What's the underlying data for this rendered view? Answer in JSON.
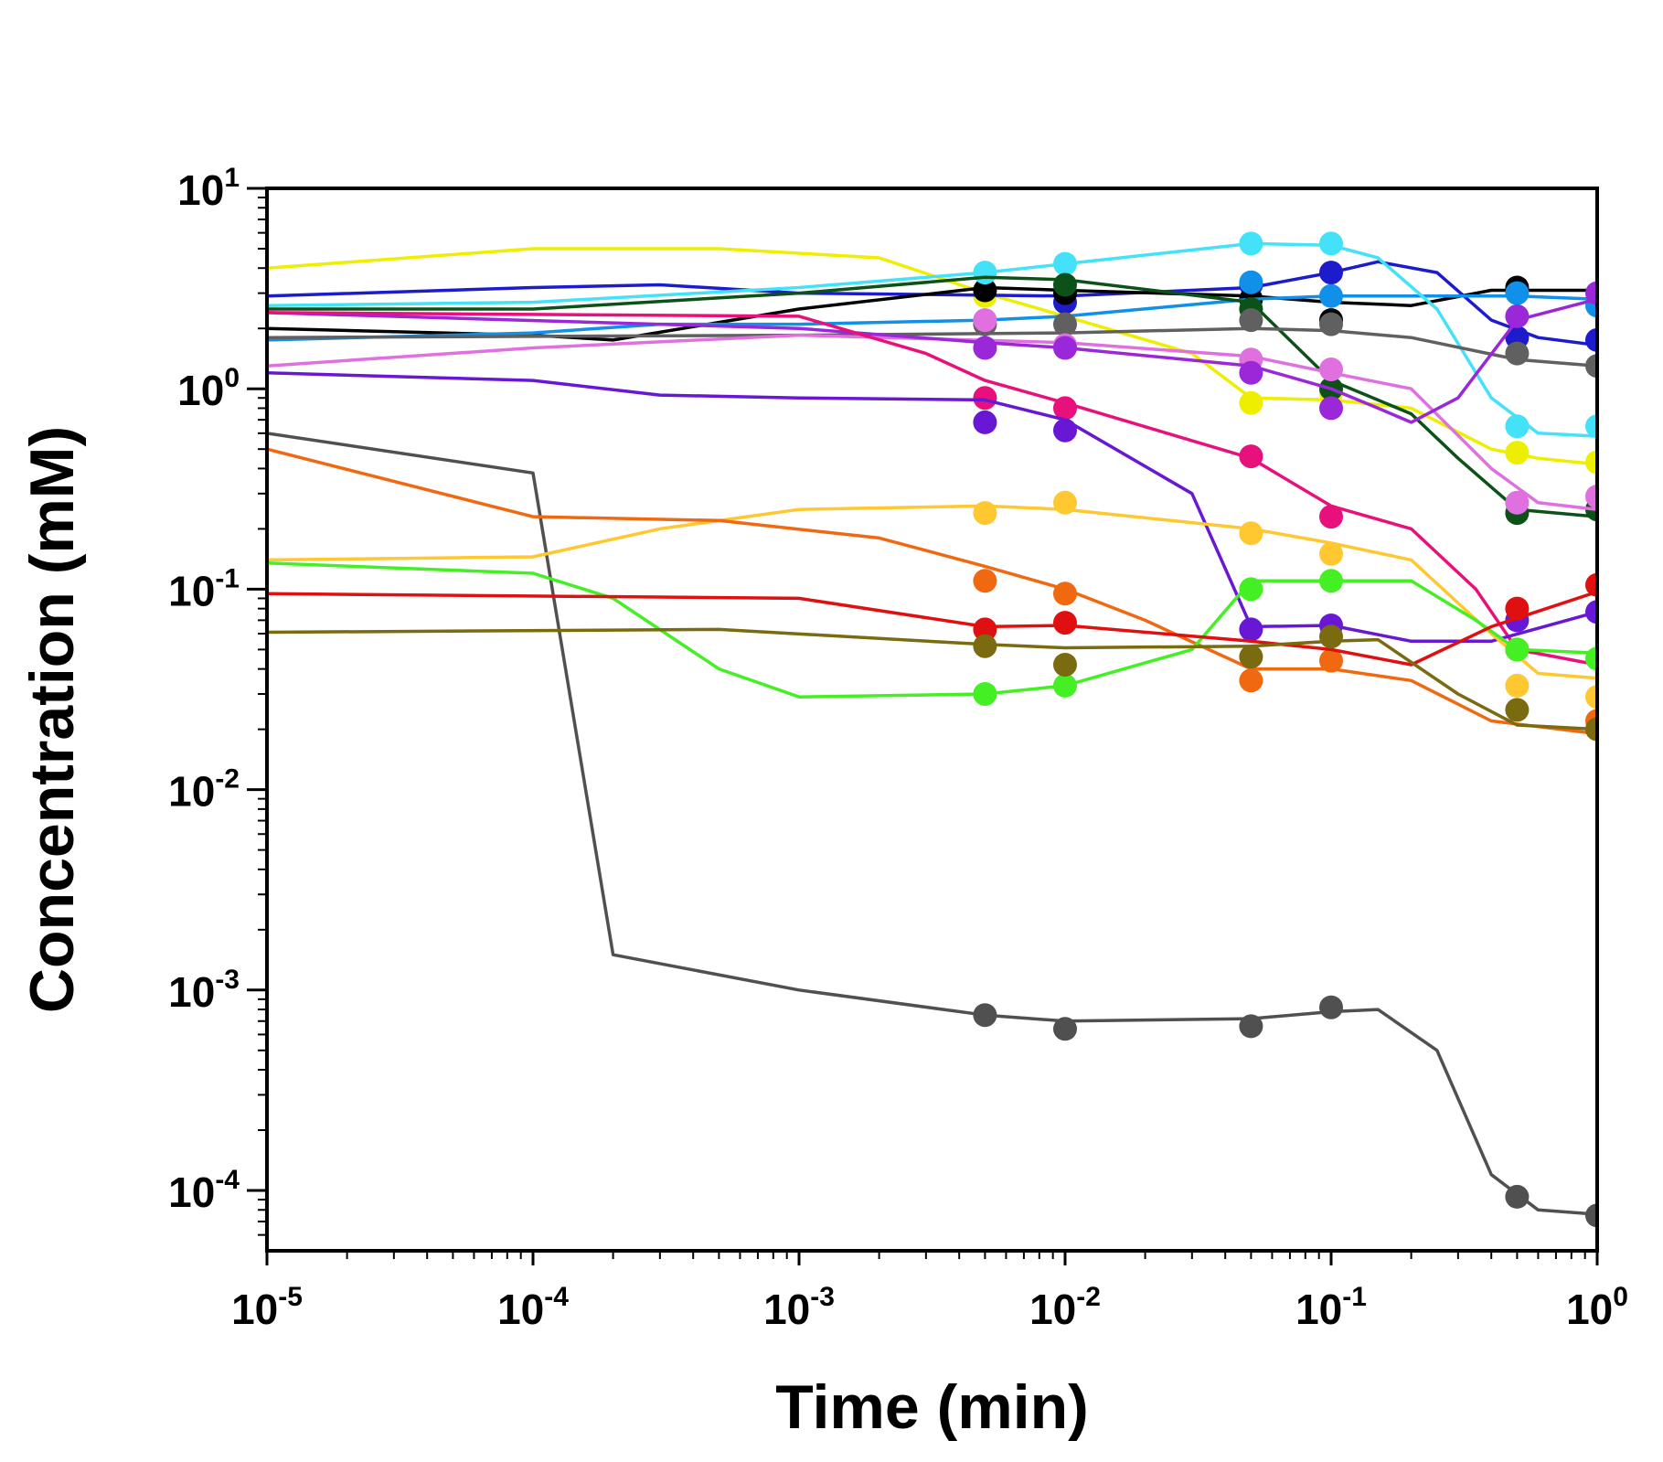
{
  "chart_data": {
    "type": "scatter",
    "title": "",
    "xlabel": "Time (min)",
    "ylabel": "Concentration (mM)",
    "xscale": "log",
    "yscale": "log",
    "xlim": [
      1e-05,
      1
    ],
    "ylim": [
      5e-05,
      10
    ],
    "grid": false,
    "legend": "none",
    "x_ticks": [
      {
        "base": "10",
        "exp": "-5",
        "value": 1e-05
      },
      {
        "base": "10",
        "exp": "-4",
        "value": 0.0001
      },
      {
        "base": "10",
        "exp": "-3",
        "value": 0.001
      },
      {
        "base": "10",
        "exp": "-2",
        "value": 0.01
      },
      {
        "base": "10",
        "exp": "-1",
        "value": 0.1
      },
      {
        "base": "10",
        "exp": "0",
        "value": 1
      }
    ],
    "y_ticks": [
      {
        "base": "10",
        "exp": "1",
        "value": 10
      },
      {
        "base": "10",
        "exp": "0",
        "value": 1
      },
      {
        "base": "10",
        "exp": "-1",
        "value": 0.1
      },
      {
        "base": "10",
        "exp": "-2",
        "value": 0.01
      },
      {
        "base": "10",
        "exp": "-3",
        "value": 0.001
      },
      {
        "base": "10",
        "exp": "-4",
        "value": 0.0001
      }
    ],
    "series": [
      {
        "color": "#505050",
        "line": [
          [
            1e-05,
            0.6
          ],
          [
            0.0001,
            0.38
          ],
          [
            0.0002,
            0.0015
          ],
          [
            0.001,
            0.001
          ],
          [
            0.005,
            0.00075
          ],
          [
            0.01,
            0.0007
          ],
          [
            0.05,
            0.00072
          ],
          [
            0.1,
            0.00078
          ],
          [
            0.15,
            0.0008
          ],
          [
            0.25,
            0.0005
          ],
          [
            0.4,
            0.00012
          ],
          [
            0.6,
            8e-05
          ],
          [
            1,
            7.6e-05
          ]
        ],
        "points": [
          [
            0.005,
            0.00075
          ],
          [
            0.01,
            0.00064
          ],
          [
            0.05,
            0.00066
          ],
          [
            0.1,
            0.00082
          ],
          [
            0.5,
            9.3e-05
          ],
          [
            1,
            7.5e-05
          ]
        ]
      },
      {
        "color": "#eeee00",
        "line": [
          [
            1e-05,
            4.0
          ],
          [
            0.0001,
            5.0
          ],
          [
            0.0005,
            5.0
          ],
          [
            0.002,
            4.5
          ],
          [
            0.005,
            3.0
          ],
          [
            0.01,
            2.3
          ],
          [
            0.03,
            1.5
          ],
          [
            0.05,
            0.9
          ],
          [
            0.1,
            0.88
          ],
          [
            0.2,
            0.8
          ],
          [
            0.4,
            0.5
          ],
          [
            0.6,
            0.45
          ],
          [
            1,
            0.42
          ]
        ],
        "points": [
          [
            0.005,
            2.9
          ],
          [
            0.05,
            0.85
          ],
          [
            0.1,
            0.95
          ],
          [
            0.5,
            0.48
          ],
          [
            1,
            0.43
          ]
        ]
      },
      {
        "color": "#1c1ccc",
        "line": [
          [
            1e-05,
            2.9
          ],
          [
            0.0001,
            3.2
          ],
          [
            0.0003,
            3.3
          ],
          [
            0.001,
            3.0
          ],
          [
            0.01,
            2.9
          ],
          [
            0.05,
            3.2
          ],
          [
            0.1,
            3.8
          ],
          [
            0.15,
            4.3
          ],
          [
            0.25,
            3.8
          ],
          [
            0.4,
            2.2
          ],
          [
            0.6,
            1.8
          ],
          [
            1,
            1.65
          ]
        ],
        "points": [
          [
            0.01,
            2.7
          ],
          [
            0.05,
            3.3
          ],
          [
            0.1,
            3.8
          ],
          [
            0.5,
            1.8
          ],
          [
            1,
            1.75
          ]
        ]
      },
      {
        "color": "#000000",
        "line": [
          [
            1e-05,
            2.0
          ],
          [
            0.0001,
            1.85
          ],
          [
            0.0002,
            1.75
          ],
          [
            0.001,
            2.5
          ],
          [
            0.005,
            3.2
          ],
          [
            0.01,
            3.1
          ],
          [
            0.05,
            2.9
          ],
          [
            0.1,
            2.7
          ],
          [
            0.2,
            2.6
          ],
          [
            0.4,
            3.1
          ],
          [
            1,
            3.1
          ]
        ],
        "points": [
          [
            0.005,
            3.1
          ],
          [
            0.01,
            3.0
          ],
          [
            0.05,
            2.8
          ],
          [
            0.1,
            2.2
          ],
          [
            0.5,
            3.2
          ]
        ]
      },
      {
        "color": "#1090e8",
        "line": [
          [
            1e-05,
            1.75
          ],
          [
            0.0001,
            1.9
          ],
          [
            0.0003,
            2.1
          ],
          [
            0.001,
            2.1
          ],
          [
            0.005,
            2.2
          ],
          [
            0.01,
            2.3
          ],
          [
            0.05,
            2.8
          ],
          [
            0.1,
            2.9
          ],
          [
            0.5,
            2.9
          ],
          [
            1,
            2.8
          ]
        ],
        "points": [
          [
            0.05,
            3.4
          ],
          [
            0.1,
            2.9
          ],
          [
            0.5,
            3.0
          ],
          [
            1,
            2.6
          ]
        ]
      },
      {
        "color": "#44e2f8",
        "line": [
          [
            1e-05,
            2.6
          ],
          [
            0.0001,
            2.7
          ],
          [
            0.001,
            3.2
          ],
          [
            0.005,
            3.8
          ],
          [
            0.01,
            4.2
          ],
          [
            0.05,
            5.3
          ],
          [
            0.1,
            5.2
          ],
          [
            0.15,
            4.5
          ],
          [
            0.25,
            2.5
          ],
          [
            0.4,
            0.9
          ],
          [
            0.6,
            0.6
          ],
          [
            1,
            0.58
          ]
        ],
        "points": [
          [
            0.005,
            3.8
          ],
          [
            0.01,
            4.2
          ],
          [
            0.05,
            5.3
          ],
          [
            0.1,
            5.3
          ],
          [
            0.5,
            0.65
          ],
          [
            1,
            0.65
          ]
        ]
      },
      {
        "color": "#0c5218",
        "line": [
          [
            1e-05,
            2.5
          ],
          [
            0.0001,
            2.5
          ],
          [
            0.001,
            3.0
          ],
          [
            0.005,
            3.6
          ],
          [
            0.01,
            3.5
          ],
          [
            0.05,
            2.7
          ],
          [
            0.1,
            1.1
          ],
          [
            0.2,
            0.75
          ],
          [
            0.3,
            0.45
          ],
          [
            0.5,
            0.25
          ],
          [
            1,
            0.23
          ]
        ],
        "points": [
          [
            0.01,
            3.3
          ],
          [
            0.05,
            2.5
          ],
          [
            0.1,
            1.0
          ],
          [
            0.5,
            0.24
          ],
          [
            1,
            0.25
          ]
        ]
      },
      {
        "color": "#606060",
        "line": [
          [
            1e-05,
            1.8
          ],
          [
            0.001,
            1.85
          ],
          [
            0.01,
            1.9
          ],
          [
            0.05,
            2.0
          ],
          [
            0.1,
            1.95
          ],
          [
            0.2,
            1.8
          ],
          [
            0.5,
            1.4
          ],
          [
            1,
            1.3
          ]
        ],
        "points": [
          [
            0.005,
            2.1
          ],
          [
            0.01,
            2.1
          ],
          [
            0.05,
            2.2
          ],
          [
            0.1,
            2.1
          ],
          [
            0.5,
            1.5
          ],
          [
            1,
            1.3
          ]
        ]
      },
      {
        "color": "#e070e0",
        "line": [
          [
            1e-05,
            1.3
          ],
          [
            0.0001,
            1.6
          ],
          [
            0.001,
            1.85
          ],
          [
            0.01,
            1.7
          ],
          [
            0.05,
            1.45
          ],
          [
            0.1,
            1.2
          ],
          [
            0.2,
            1.0
          ],
          [
            0.4,
            0.4
          ],
          [
            0.6,
            0.27
          ],
          [
            1,
            0.25
          ]
        ],
        "points": [
          [
            0.005,
            2.2
          ],
          [
            0.01,
            1.65
          ],
          [
            0.05,
            1.4
          ],
          [
            0.1,
            1.25
          ],
          [
            0.5,
            0.27
          ],
          [
            1,
            0.29
          ]
        ]
      },
      {
        "color": "#9a28d8",
        "line": [
          [
            1e-05,
            2.4
          ],
          [
            0.001,
            2.0
          ],
          [
            0.005,
            1.7
          ],
          [
            0.01,
            1.6
          ],
          [
            0.05,
            1.3
          ],
          [
            0.1,
            1.0
          ],
          [
            0.15,
            0.8
          ],
          [
            0.2,
            0.68
          ],
          [
            0.3,
            0.9
          ],
          [
            0.5,
            2.2
          ],
          [
            1,
            2.8
          ]
        ],
        "points": [
          [
            0.005,
            1.6
          ],
          [
            0.01,
            1.6
          ],
          [
            0.05,
            1.2
          ],
          [
            0.1,
            0.8
          ],
          [
            0.5,
            2.3
          ],
          [
            1,
            3.0
          ]
        ]
      },
      {
        "color": "#e8107a",
        "line": [
          [
            1e-05,
            2.4
          ],
          [
            0.001,
            2.3
          ],
          [
            0.003,
            1.5
          ],
          [
            0.005,
            1.1
          ],
          [
            0.01,
            0.85
          ],
          [
            0.05,
            0.45
          ],
          [
            0.1,
            0.26
          ],
          [
            0.2,
            0.2
          ],
          [
            0.35,
            0.1
          ],
          [
            0.5,
            0.05
          ],
          [
            1,
            0.042
          ]
        ],
        "points": [
          [
            0.005,
            0.9
          ],
          [
            0.01,
            0.8
          ],
          [
            0.05,
            0.46
          ],
          [
            0.1,
            0.23
          ],
          [
            0.5,
            0.05
          ]
        ]
      },
      {
        "color": "#6818d4",
        "line": [
          [
            1e-05,
            1.2
          ],
          [
            0.0001,
            1.1
          ],
          [
            0.0003,
            0.93
          ],
          [
            0.001,
            0.9
          ],
          [
            0.005,
            0.88
          ],
          [
            0.01,
            0.7
          ],
          [
            0.03,
            0.3
          ],
          [
            0.05,
            0.065
          ],
          [
            0.1,
            0.066
          ],
          [
            0.2,
            0.055
          ],
          [
            0.4,
            0.055
          ],
          [
            1,
            0.077
          ]
        ],
        "points": [
          [
            0.005,
            0.68
          ],
          [
            0.01,
            0.62
          ],
          [
            0.05,
            0.063
          ],
          [
            0.1,
            0.066
          ],
          [
            0.5,
            0.07
          ],
          [
            1,
            0.077
          ]
        ]
      },
      {
        "color": "#ffc830",
        "line": [
          [
            1e-05,
            0.14
          ],
          [
            0.0001,
            0.145
          ],
          [
            0.0003,
            0.2
          ],
          [
            0.001,
            0.25
          ],
          [
            0.005,
            0.26
          ],
          [
            0.01,
            0.25
          ],
          [
            0.05,
            0.2
          ],
          [
            0.1,
            0.17
          ],
          [
            0.2,
            0.14
          ],
          [
            0.4,
            0.06
          ],
          [
            0.6,
            0.038
          ],
          [
            1,
            0.036
          ]
        ],
        "points": [
          [
            0.005,
            0.24
          ],
          [
            0.01,
            0.27
          ],
          [
            0.05,
            0.19
          ],
          [
            0.1,
            0.15
          ],
          [
            0.5,
            0.033
          ],
          [
            1,
            0.029
          ]
        ]
      },
      {
        "color": "#f06810",
        "line": [
          [
            1e-05,
            0.5
          ],
          [
            0.0001,
            0.23
          ],
          [
            0.0005,
            0.22
          ],
          [
            0.002,
            0.18
          ],
          [
            0.005,
            0.13
          ],
          [
            0.01,
            0.1
          ],
          [
            0.02,
            0.07
          ],
          [
            0.05,
            0.04
          ],
          [
            0.1,
            0.04
          ],
          [
            0.2,
            0.035
          ],
          [
            0.4,
            0.022
          ],
          [
            1,
            0.019
          ]
        ],
        "points": [
          [
            0.005,
            0.11
          ],
          [
            0.01,
            0.095
          ],
          [
            0.05,
            0.035
          ],
          [
            0.1,
            0.044
          ],
          [
            1,
            0.022
          ]
        ]
      },
      {
        "color": "#44f024",
        "line": [
          [
            1e-05,
            0.135
          ],
          [
            0.0001,
            0.12
          ],
          [
            0.0002,
            0.09
          ],
          [
            0.0005,
            0.04
          ],
          [
            0.001,
            0.029
          ],
          [
            0.005,
            0.03
          ],
          [
            0.01,
            0.033
          ],
          [
            0.03,
            0.05
          ],
          [
            0.05,
            0.11
          ],
          [
            0.1,
            0.11
          ],
          [
            0.2,
            0.11
          ],
          [
            0.35,
            0.07
          ],
          [
            0.5,
            0.05
          ],
          [
            1,
            0.048
          ]
        ],
        "points": [
          [
            0.005,
            0.03
          ],
          [
            0.01,
            0.033
          ],
          [
            0.05,
            0.1
          ],
          [
            0.1,
            0.11
          ],
          [
            0.5,
            0.05
          ],
          [
            1,
            0.045
          ]
        ]
      },
      {
        "color": "#e01010",
        "line": [
          [
            1e-05,
            0.095
          ],
          [
            0.001,
            0.09
          ],
          [
            0.005,
            0.065
          ],
          [
            0.01,
            0.066
          ],
          [
            0.05,
            0.055
          ],
          [
            0.1,
            0.05
          ],
          [
            0.2,
            0.042
          ],
          [
            0.4,
            0.065
          ],
          [
            1,
            0.097
          ]
        ],
        "points": [
          [
            0.005,
            0.063
          ],
          [
            0.01,
            0.068
          ],
          [
            0.5,
            0.08
          ],
          [
            1,
            0.105
          ]
        ]
      },
      {
        "color": "#7a6a10",
        "line": [
          [
            1e-05,
            0.061
          ],
          [
            0.0005,
            0.063
          ],
          [
            0.005,
            0.053
          ],
          [
            0.01,
            0.051
          ],
          [
            0.05,
            0.052
          ],
          [
            0.1,
            0.055
          ],
          [
            0.15,
            0.056
          ],
          [
            0.3,
            0.03
          ],
          [
            0.5,
            0.021
          ],
          [
            1,
            0.02
          ]
        ],
        "points": [
          [
            0.005,
            0.052
          ],
          [
            0.01,
            0.042
          ],
          [
            0.05,
            0.046
          ],
          [
            0.1,
            0.058
          ],
          [
            0.5,
            0.025
          ],
          [
            1,
            0.02
          ]
        ]
      }
    ]
  }
}
